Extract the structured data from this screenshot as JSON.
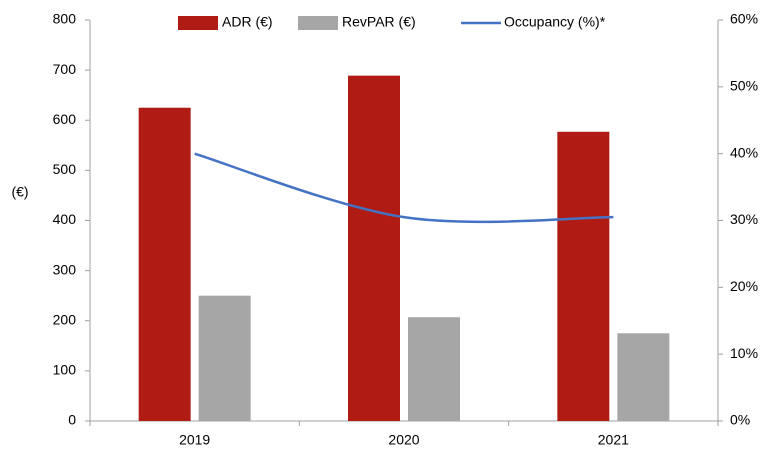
{
  "chart_data": {
    "type": "bar_line",
    "y_label": "(€)",
    "categories": [
      "2019",
      "2020",
      "2021"
    ],
    "series": [
      {
        "name": "ADR (€)",
        "color": "#b01c14",
        "type": "bar",
        "values": [
          625,
          689,
          577
        ]
      },
      {
        "name": "RevPAR (€)",
        "color": "#a6a6a6",
        "type": "bar",
        "values": [
          250,
          207,
          175
        ]
      },
      {
        "name": "Occupancy (%)*",
        "color": "#4472c4",
        "type": "line",
        "axis": "y2",
        "values": [
          40,
          30.5,
          30.5
        ]
      }
    ],
    "ylim": [
      0,
      800
    ],
    "yticks": [
      0,
      100,
      200,
      300,
      400,
      500,
      600,
      700,
      800
    ],
    "y2lim": [
      0,
      60
    ],
    "y2ticks": [
      {
        "value": 0,
        "label": "0%"
      },
      {
        "value": 10,
        "label": "10%"
      },
      {
        "value": 20,
        "label": "20%"
      },
      {
        "value": 30,
        "label": "30%"
      },
      {
        "value": 40,
        "label": "40%"
      },
      {
        "value": 50,
        "label": "50%"
      },
      {
        "value": 60,
        "label": "60%"
      }
    ],
    "legend": "top",
    "grid": false
  }
}
